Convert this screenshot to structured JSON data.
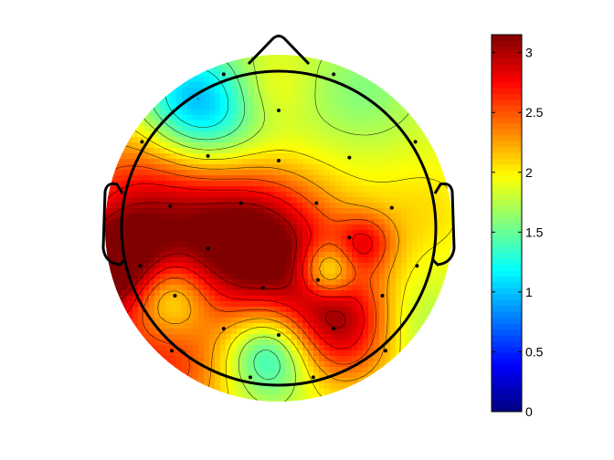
{
  "chart_data": {
    "type": "heatmap",
    "title": "",
    "colormap": "jet",
    "colorbar": {
      "range": [
        0,
        3.15
      ],
      "ticks": [
        0,
        0.5,
        1,
        1.5,
        2,
        2.5,
        3
      ],
      "tick_labels": [
        "0",
        "0.5",
        "1",
        "1.5",
        "2",
        "2.5",
        "3"
      ]
    },
    "base_value": 1.85,
    "head_map": {
      "x_range": [
        -1,
        1
      ],
      "y_range": [
        -1,
        1
      ],
      "features": [
        "head-outline",
        "nose",
        "left-ear",
        "right-ear",
        "contour-lines",
        "electrode-markers"
      ],
      "sources": [
        {
          "x": -0.1,
          "y": -0.12,
          "value": 3.1,
          "spread": 0.3
        },
        {
          "x": 0.35,
          "y": -0.55,
          "value": 2.95,
          "spread": 0.24
        },
        {
          "x": -0.7,
          "y": 0.1,
          "value": 2.85,
          "spread": 0.38
        },
        {
          "x": -0.95,
          "y": -0.25,
          "value": 2.9,
          "spread": 0.22
        },
        {
          "x": -0.7,
          "y": -0.8,
          "value": 2.6,
          "spread": 0.3
        },
        {
          "x": 0.5,
          "y": -0.08,
          "value": 2.45,
          "spread": 0.12
        },
        {
          "x": -0.45,
          "y": 0.65,
          "value": 0.9,
          "spread": 0.24
        },
        {
          "x": -0.65,
          "y": -0.4,
          "value": 1.0,
          "spread": 0.17
        },
        {
          "x": -0.05,
          "y": -0.72,
          "value": 1.0,
          "spread": 0.18
        },
        {
          "x": 0.28,
          "y": -0.25,
          "value": 1.05,
          "spread": 0.11
        },
        {
          "x": 0.5,
          "y": 0.8,
          "value": 1.6,
          "spread": 0.22
        },
        {
          "x": -0.6,
          "y": 0.85,
          "value": 1.6,
          "spread": 0.2
        },
        {
          "x": 0.75,
          "y": -0.55,
          "value": 1.6,
          "spread": 0.18
        },
        {
          "x": -0.05,
          "y": 0.8,
          "value": 2.05,
          "spread": 0.15
        },
        {
          "x": 0.1,
          "y": 0.45,
          "value": 1.75,
          "spread": 0.3
        },
        {
          "x": 0.3,
          "y": 0.15,
          "value": 1.95,
          "spread": 0.3
        },
        {
          "x": 0.85,
          "y": 0.1,
          "value": 2.05,
          "spread": 0.22
        }
      ],
      "electrodes": [
        [
          -0.35,
          0.98
        ],
        [
          0.35,
          0.98
        ],
        [
          0.0,
          0.75
        ],
        [
          -0.45,
          0.46
        ],
        [
          0.0,
          0.43
        ],
        [
          0.45,
          0.45
        ],
        [
          -0.87,
          0.55
        ],
        [
          0.87,
          0.55
        ],
        [
          -0.24,
          0.16
        ],
        [
          0.24,
          0.16
        ],
        [
          -0.69,
          0.14
        ],
        [
          0.72,
          0.13
        ],
        [
          -0.88,
          -0.24
        ],
        [
          0.88,
          -0.24
        ],
        [
          -0.45,
          -0.13
        ],
        [
          0.45,
          -0.06
        ],
        [
          -0.1,
          -0.38
        ],
        [
          0.25,
          -0.33
        ],
        [
          -0.66,
          -0.43
        ],
        [
          0.66,
          -0.43
        ],
        [
          -0.35,
          -0.64
        ],
        [
          0.35,
          -0.64
        ],
        [
          0.0,
          -0.68
        ],
        [
          -0.68,
          -0.78
        ],
        [
          0.68,
          -0.78
        ],
        [
          -0.18,
          -0.95
        ],
        [
          0.22,
          -0.95
        ]
      ]
    }
  }
}
